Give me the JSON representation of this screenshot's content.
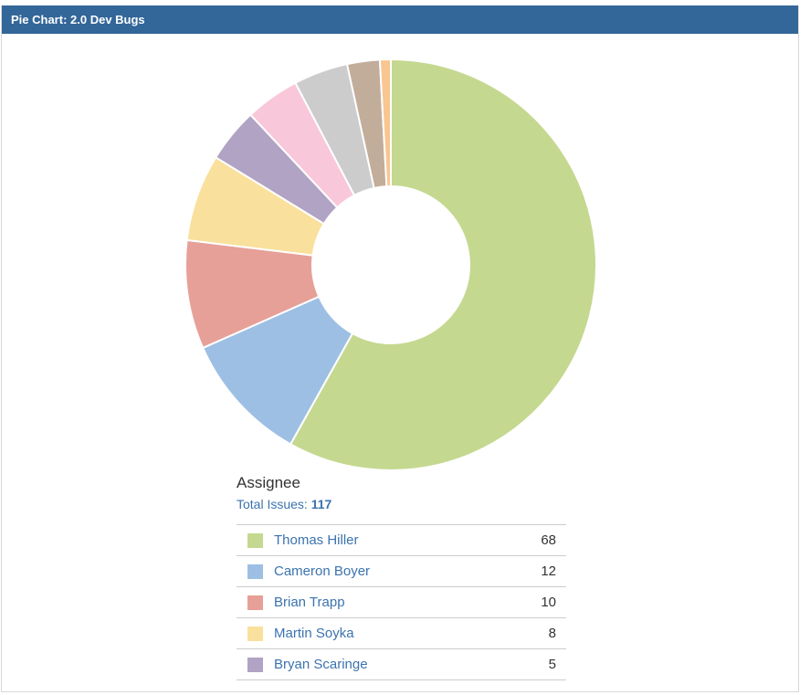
{
  "header": {
    "title": "Pie Chart: 2.0 Dev Bugs"
  },
  "legend": {
    "title": "Assignee",
    "total_label": "Total Issues:",
    "total_value": "117"
  },
  "chart_data": {
    "type": "pie",
    "style": "donut",
    "total": 117,
    "slices": [
      {
        "label": "Thomas Hiller",
        "value": 68,
        "color": "#c5d890"
      },
      {
        "label": "Cameron Boyer",
        "value": 12,
        "color": "#9dbfe3"
      },
      {
        "label": "Brian Trapp",
        "value": 10,
        "color": "#e6a098"
      },
      {
        "label": "Martin Soyka",
        "value": 8,
        "color": "#f9e09c"
      },
      {
        "label": "Bryan Scaringe",
        "value": 5,
        "color": "#b1a3c3"
      },
      {
        "label": "",
        "value": 5,
        "color": "#f9c7da"
      },
      {
        "label": "",
        "value": 5,
        "color": "#cccccc"
      },
      {
        "label": "",
        "value": 3,
        "color": "#c2ad9b"
      },
      {
        "label": "",
        "value": 1,
        "color": "#f9c590"
      }
    ]
  }
}
